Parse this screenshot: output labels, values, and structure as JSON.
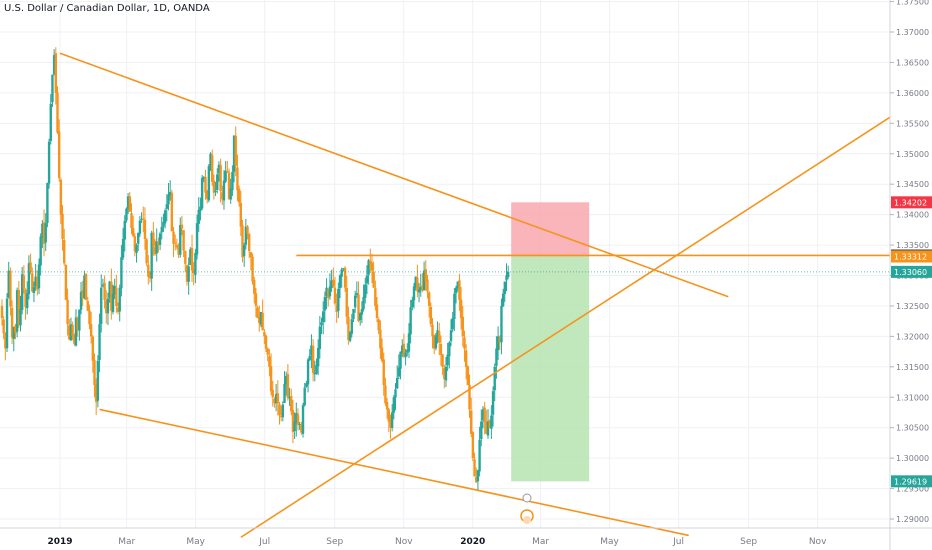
{
  "header": {
    "title": "U.S. Dollar / Canadian Dollar, 1D, OANDA"
  },
  "colors": {
    "up": "#26a69a",
    "down": "#f7931a",
    "trendline": "#f7931a",
    "stop_zone": "#f8a8ad",
    "target_zone": "#b6e3b1",
    "grid": "#eef0f4",
    "axis_text": "#787b86"
  },
  "chart_data": {
    "type": "candlestick",
    "title": "U.S. Dollar / Canadian Dollar, 1D, OANDA",
    "x_ticks": [
      "2019",
      "Mar",
      "May",
      "Jul",
      "Sep",
      "Nov",
      "2020",
      "Mar",
      "May",
      "Jul",
      "Sep",
      "Nov"
    ],
    "y_ticks": [
      "1.29000",
      "1.29500",
      "1.30000",
      "1.30500",
      "1.31000",
      "1.31500",
      "1.32000",
      "1.32500",
      "1.33000",
      "1.33500",
      "1.34000",
      "1.34500",
      "1.35000",
      "1.35500",
      "1.36000",
      "1.36500",
      "1.37000",
      "1.37500"
    ],
    "ylim": [
      1.2875,
      1.375
    ],
    "price_labels": [
      {
        "text": "1.34202",
        "value": 1.34202,
        "color": "#f23645"
      },
      {
        "text": "1.33329",
        "value": 1.33329,
        "color": "#4a4a4a"
      },
      {
        "text": "1.33312",
        "value": 1.33312,
        "color": "#f7931a"
      },
      {
        "text": "1.33060",
        "value": 1.3306,
        "color": "#26a69a"
      },
      {
        "text": "1.29619",
        "value": 1.29619,
        "color": "#26a69a"
      }
    ],
    "series_closes": [
      1.323,
      1.3205,
      1.318,
      1.3262,
      1.3308,
      1.3249,
      1.3198,
      1.3215,
      1.3205,
      1.3276,
      1.322,
      1.3245,
      1.3302,
      1.3278,
      1.3248,
      1.3271,
      1.332,
      1.3305,
      1.3274,
      1.3281,
      1.3298,
      1.3277,
      1.3318,
      1.3364,
      1.3385,
      1.3352,
      1.3386,
      1.3452,
      1.352,
      1.3582,
      1.363,
      1.3662,
      1.36,
      1.3535,
      1.346,
      1.34,
      1.336,
      1.332,
      1.326,
      1.322,
      1.3195,
      1.322,
      1.32,
      1.3188,
      1.3231,
      1.321,
      1.3244,
      1.3273,
      1.3264,
      1.33,
      1.326,
      1.3242,
      1.322,
      1.32,
      1.316,
      1.312,
      1.3092,
      1.316,
      1.322,
      1.328,
      1.3285,
      1.326,
      1.3238,
      1.3262,
      1.329,
      1.3242,
      1.327,
      1.3283,
      1.325,
      1.324,
      1.328,
      1.333,
      1.336,
      1.339,
      1.341,
      1.343,
      1.3405,
      1.3378,
      1.3365,
      1.334,
      1.335,
      1.337,
      1.339,
      1.3393,
      1.3392,
      1.336,
      1.332,
      1.3298,
      1.3296,
      1.337,
      1.3348,
      1.3335,
      1.3356,
      1.335,
      1.3369,
      1.338,
      1.3388,
      1.3407,
      1.3417,
      1.3433,
      1.3437,
      1.3373,
      1.3352,
      1.3353,
      1.3346,
      1.3334,
      1.3383,
      1.3377,
      1.3341,
      1.3319,
      1.329,
      1.3315,
      1.3343,
      1.3308,
      1.3304,
      1.3337,
      1.3386,
      1.3408,
      1.3413,
      1.346,
      1.3462,
      1.3436,
      1.3426,
      1.348,
      1.35,
      1.3454,
      1.3436,
      1.3439,
      1.3466,
      1.3482,
      1.3439,
      1.3425,
      1.3456,
      1.3472,
      1.347,
      1.3425,
      1.3443,
      1.347,
      1.353,
      1.348,
      1.344,
      1.342,
      1.338,
      1.333,
      1.335,
      1.338,
      1.3369,
      1.334,
      1.333,
      1.329,
      1.327,
      1.325,
      1.323,
      1.3222,
      1.324,
      1.321,
      1.32,
      1.318,
      1.317,
      1.315,
      1.311,
      1.31,
      1.309,
      1.3105,
      1.309,
      1.307,
      1.3068,
      1.3088,
      1.3122,
      1.3135,
      1.3099,
      1.31,
      1.3077,
      1.3043,
      1.306,
      1.3074,
      1.3055,
      1.3056,
      1.3042,
      1.3087,
      1.3116,
      1.3123,
      1.3162,
      1.3168,
      1.3185,
      1.314,
      1.314,
      1.3153,
      1.3181,
      1.3216,
      1.3223,
      1.3241,
      1.3265,
      1.328,
      1.3263,
      1.3282,
      1.3292,
      1.3282,
      1.3254,
      1.324,
      1.3278,
      1.33,
      1.331,
      1.3312,
      1.328,
      1.3232,
      1.3194,
      1.3206,
      1.3228,
      1.3245,
      1.3267,
      1.3271,
      1.3225,
      1.3238,
      1.3245,
      1.3265,
      1.3285,
      1.33,
      1.3325,
      1.3318,
      1.3308,
      1.328,
      1.325,
      1.323,
      1.321,
      1.318,
      1.316,
      1.312,
      1.309,
      1.308,
      1.306,
      1.305,
      1.3075,
      1.31,
      1.3113,
      1.3132,
      1.3149,
      1.3175,
      1.3185,
      1.3167,
      1.3173,
      1.3178,
      1.3205,
      1.3248,
      1.326,
      1.3282,
      1.3298,
      1.3274,
      1.3277,
      1.3281,
      1.3275,
      1.3308,
      1.3291,
      1.3274,
      1.325,
      1.322,
      1.32,
      1.318,
      1.32,
      1.321,
      1.319,
      1.317,
      1.315,
      1.313,
      1.315,
      1.317,
      1.319,
      1.321,
      1.323,
      1.327,
      1.328,
      1.329,
      1.326,
      1.323,
      1.32,
      1.318,
      1.315,
      1.312,
      1.308,
      1.304,
      1.3,
      1.297,
      1.296,
      1.298,
      1.303,
      1.306,
      1.308,
      1.306,
      1.304,
      1.306,
      1.305,
      1.307,
      1.311,
      1.315,
      1.318,
      1.32,
      1.319,
      1.325,
      1.327,
      1.329,
      1.33,
      1.3306
    ],
    "position": {
      "type": "short",
      "entry": 1.33312,
      "stop": 1.34202,
      "target": 1.29619,
      "start_date": "2020-02-04",
      "end_date": "2020-04-13"
    },
    "resistance_level": 1.33329,
    "trendlines": [
      {
        "name": "upper-falling",
        "from": [
          "2019-01-01",
          1.3665
        ],
        "to": [
          "2020-08-14",
          1.3265
        ]
      },
      {
        "name": "lower-falling",
        "from": [
          "2019-02-05",
          1.308
        ],
        "to": [
          "2020-07-10",
          1.2873
        ]
      },
      {
        "name": "rising",
        "from": [
          "2019-06-10",
          1.287
        ],
        "to": [
          "2021-01-04",
          1.356
        ]
      },
      {
        "name": "resistance",
        "from": [
          "2019-07-29",
          1.33329
        ],
        "to": [
          "2021-01-04",
          1.33329
        ]
      }
    ],
    "grid": true
  }
}
